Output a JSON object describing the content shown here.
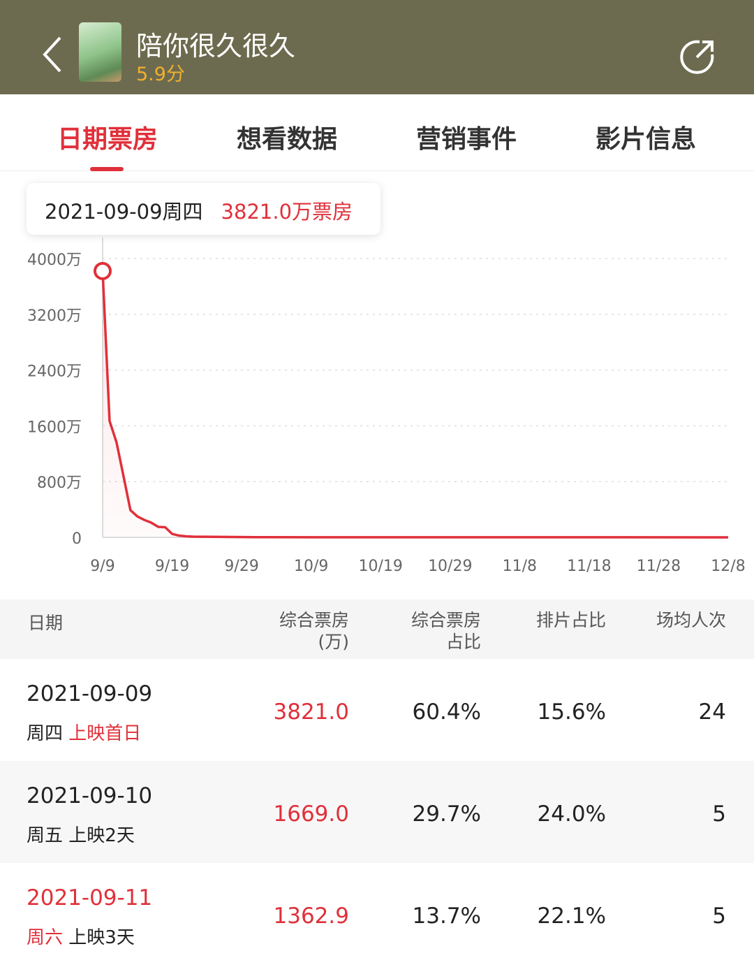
{
  "header": {
    "title": "陪你很久很久",
    "score": "5.9分",
    "back_icon": "chevron-left-icon",
    "share_icon": "share-icon",
    "poster": "movie-poster"
  },
  "tabs": [
    {
      "label": "日期票房",
      "active": true
    },
    {
      "label": "想看数据"
    },
    {
      "label": "营销事件"
    },
    {
      "label": "影片信息"
    }
  ],
  "tooltip": {
    "date": "2021-09-09周四",
    "value": "3821.0万票房"
  },
  "colors": {
    "accent": "#e0303a",
    "header": "#6d6b4f",
    "score": "#f0b030"
  },
  "chart_data": {
    "type": "line",
    "ylim": [
      0,
      4000
    ],
    "y_ticks": [
      "0",
      "800万",
      "1600万",
      "2400万",
      "3200万",
      "4000万"
    ],
    "y_tick_values": [
      0,
      800,
      1600,
      2400,
      3200,
      4000
    ],
    "x_ticks": [
      "9/9",
      "9/19",
      "9/29",
      "10/9",
      "10/19",
      "10/29",
      "11/8",
      "11/18",
      "11/28",
      "12/8"
    ],
    "grid": true,
    "series": [
      {
        "x": [
          "9/9",
          "9/10",
          "9/11",
          "9/12",
          "9/13",
          "9/14",
          "9/15",
          "9/16",
          "9/17",
          "9/18",
          "9/19",
          "9/20",
          "9/21",
          "9/22",
          "9/25",
          "10/1",
          "10/9",
          "12/8"
        ],
        "y": [
          3821,
          1669,
          1362.9,
          880,
          390,
          300,
          250,
          210,
          150,
          145,
          50,
          25,
          15,
          10,
          8,
          3,
          1,
          0.5
        ]
      }
    ],
    "highlight": "9/9"
  },
  "table": {
    "headers": [
      [
        "日期"
      ],
      [
        "综合票房",
        "(万)"
      ],
      [
        "综合票房",
        "占比"
      ],
      [
        "排片占比"
      ],
      [
        "场均人次"
      ]
    ],
    "rows": [
      {
        "date": "2021-09-09",
        "weekday": "周四",
        "day": "上映首日",
        "box": "3821.0",
        "box_share": "60.4%",
        "screen_share": "15.6%",
        "avg": "24",
        "weekend": false
      },
      {
        "date": "2021-09-10",
        "weekday": "周五",
        "day": "上映2天",
        "box": "1669.0",
        "box_share": "29.7%",
        "screen_share": "24.0%",
        "avg": "5",
        "weekend": false
      },
      {
        "date": "2021-09-11",
        "weekday": "周六",
        "day": "上映3天",
        "box": "1362.9",
        "box_share": "13.7%",
        "screen_share": "22.1%",
        "avg": "5",
        "weekend": true
      }
    ]
  }
}
